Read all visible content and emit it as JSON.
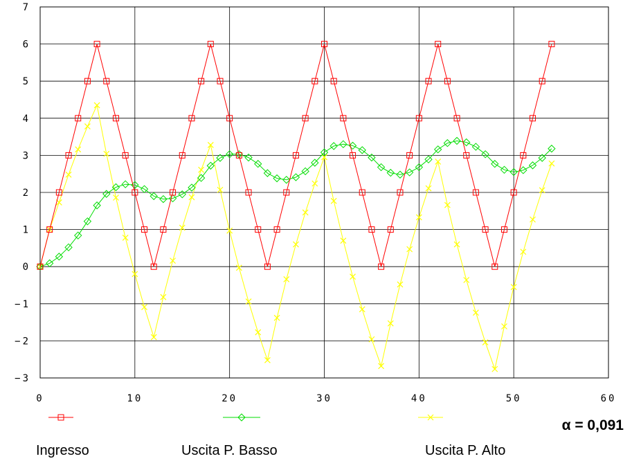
{
  "chart_data": {
    "type": "line",
    "xlim": [
      0,
      60
    ],
    "ylim": [
      -3,
      7
    ],
    "x_ticks": [
      "0",
      "10",
      "20",
      "30",
      "40",
      "50",
      "60"
    ],
    "y_ticks": [
      "7",
      "6",
      "5",
      "4",
      "3",
      "2",
      "1",
      "0",
      "-1",
      "-2",
      "-3"
    ],
    "grid": true,
    "x": [
      0,
      1,
      2,
      3,
      4,
      5,
      6,
      7,
      8,
      9,
      10,
      11,
      12,
      13,
      14,
      15,
      16,
      17,
      18,
      19,
      20,
      21,
      22,
      23,
      24,
      25,
      26,
      27,
      28,
      29,
      30,
      31,
      32,
      33,
      34,
      35,
      36,
      37,
      38,
      39,
      40,
      41,
      42,
      43,
      44,
      45,
      46,
      47,
      48,
      49,
      50,
      51,
      52,
      53,
      54
    ],
    "series": [
      {
        "name": "Ingresso",
        "color": "#ff0000",
        "marker": "square",
        "values": [
          0,
          1,
          2,
          3,
          4,
          5,
          6,
          5,
          4,
          3,
          2,
          1,
          0,
          1,
          2,
          3,
          4,
          5,
          6,
          5,
          4,
          3,
          2,
          1,
          0,
          1,
          2,
          3,
          4,
          5,
          6,
          5,
          4,
          3,
          2,
          1,
          0,
          1,
          2,
          3,
          4,
          5,
          6,
          5,
          4,
          3,
          2,
          1,
          0,
          1,
          2,
          3,
          4,
          5,
          6
        ]
      },
      {
        "name": "Uscita P. Basso",
        "color": "#00dd00",
        "marker": "diamond",
        "values": [
          0,
          0.09,
          0.27,
          0.52,
          0.84,
          1.22,
          1.65,
          1.96,
          2.14,
          2.22,
          2.2,
          2.09,
          1.9,
          1.82,
          1.84,
          1.95,
          2.13,
          2.39,
          2.72,
          2.93,
          3.03,
          3.03,
          2.94,
          2.77,
          2.52,
          2.38,
          2.34,
          2.41,
          2.57,
          2.8,
          3.08,
          3.25,
          3.3,
          3.26,
          3.14,
          2.94,
          2.68,
          2.53,
          2.48,
          2.54,
          2.68,
          2.89,
          3.16,
          3.33,
          3.39,
          3.35,
          3.23,
          3.03,
          2.77,
          2.61,
          2.55,
          2.6,
          2.73,
          2.93,
          3.18
        ]
      },
      {
        "name": "Uscita P. Alto",
        "color": "#ffff00",
        "marker": "x",
        "values": [
          0,
          1,
          1.73,
          2.48,
          3.16,
          3.78,
          4.35,
          3.04,
          1.86,
          0.78,
          -0.2,
          -1.09,
          -1.9,
          -0.82,
          0.16,
          1.05,
          1.87,
          2.61,
          3.28,
          2.07,
          0.97,
          -0.03,
          -0.94,
          -1.77,
          -2.52,
          -1.38,
          -0.34,
          0.6,
          1.46,
          2.24,
          2.95,
          1.77,
          0.7,
          -0.27,
          -1.15,
          -1.96,
          -2.68,
          -1.53,
          -0.48,
          0.47,
          1.33,
          2.11,
          2.83,
          1.66,
          0.6,
          -0.36,
          -1.24,
          -2.04,
          -2.76,
          -1.61,
          -0.55,
          0.4,
          1.27,
          2.06,
          2.78
        ]
      }
    ]
  },
  "legend": {
    "ingresso_label": "Ingresso",
    "basso_label": "Uscita P. Basso",
    "alto_label": "Uscita P. Alto"
  },
  "annotation": {
    "alpha_text": "α = 0,091"
  }
}
